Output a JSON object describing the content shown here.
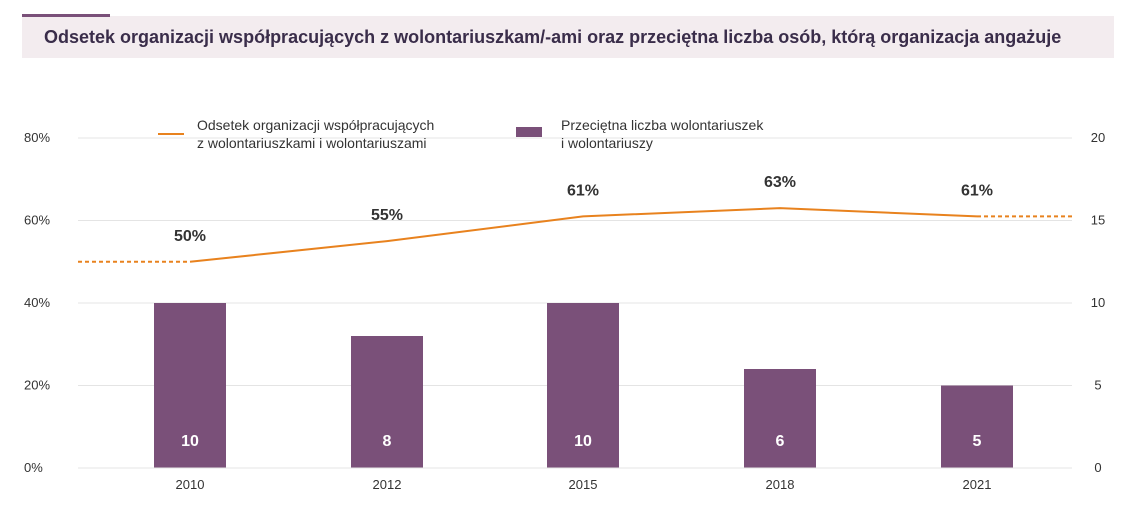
{
  "title": "Odsetek organizacji współpracujących z wolontariuszkam/-ami oraz przeciętna liczba osób, którą organizacja angażuje",
  "colors": {
    "line": "#e8821e",
    "bar": "#7a5079",
    "grid": "#e4e4e4",
    "title_band": "#f3ecef",
    "accent": "#7a5079"
  },
  "chart_data": {
    "type": "bar",
    "categories": [
      "2010",
      "2012",
      "2015",
      "2018",
      "2021"
    ],
    "series": [
      {
        "name": "Odsetek organizacji współpracujących z wolontariuszkami i wolontariuszami",
        "legend_lines": [
          "Odsetek organizacji współpracujących",
          "z wolontariuszkami i wolontariuszami"
        ],
        "type": "line",
        "axis": "left",
        "values": [
          50,
          55,
          61,
          63,
          61
        ],
        "labels": [
          "50%",
          "55%",
          "61%",
          "63%",
          "61%"
        ],
        "dashed_extensions": true
      },
      {
        "name": "Przeciętna liczba wolontariuszek i wolontariuszy",
        "legend_lines": [
          "Przeciętna liczba wolontariuszek",
          "i wolontariuszy"
        ],
        "type": "bar",
        "axis": "right",
        "values": [
          10,
          8,
          10,
          6,
          5
        ],
        "labels": [
          "10",
          "8",
          "10",
          "6",
          "5"
        ]
      }
    ],
    "y_left": {
      "min": 0,
      "max": 80,
      "ticks": [
        0,
        20,
        40,
        60,
        80
      ],
      "tick_labels": [
        "0%",
        "20%",
        "40%",
        "60%",
        "80%"
      ]
    },
    "y_right": {
      "min": 0,
      "max": 20,
      "ticks": [
        0,
        5,
        10,
        15,
        20
      ],
      "tick_labels": [
        "0",
        "5",
        "10",
        "15",
        "20"
      ]
    },
    "grid": true,
    "legend": "top"
  }
}
